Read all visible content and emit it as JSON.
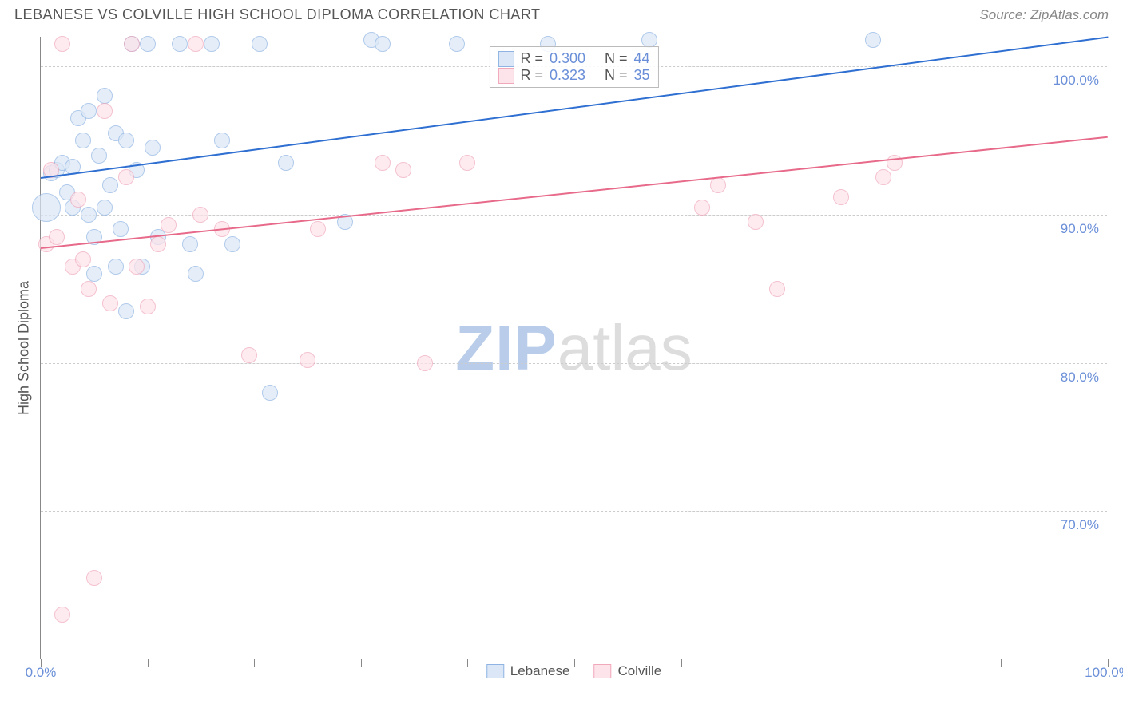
{
  "header": {
    "title": "LEBANESE VS COLVILLE HIGH SCHOOL DIPLOMA CORRELATION CHART",
    "source": "Source: ZipAtlas.com"
  },
  "chart": {
    "type": "scatter",
    "yaxis_title": "High School Diploma",
    "xlim": [
      0,
      100
    ],
    "ylim": [
      60,
      102
    ],
    "xticks": [
      0,
      10,
      20,
      30,
      40,
      50,
      60,
      70,
      80,
      90,
      100
    ],
    "xtick_labels": {
      "0": "0.0%",
      "100": "100.0%"
    },
    "yticks": [
      70,
      80,
      90,
      100
    ],
    "ytick_labels": {
      "70": "70.0%",
      "80": "80.0%",
      "90": "90.0%",
      "100": "100.0%"
    },
    "grid_color": "#cccccc",
    "background": "#ffffff",
    "axis_color": "#888888",
    "tick_label_color": "#6a8fd8",
    "marker_radius": 10,
    "marker_stroke_width": 1.5,
    "watermark": {
      "left": "ZIP",
      "right": "atlas",
      "left_color": "#b9cdea",
      "right_color": "#dddddd"
    },
    "series": [
      {
        "name": "Lebanese",
        "fill": "#dbe7f6",
        "stroke": "#8fb4e3",
        "fill_opacity": 0.7,
        "trend": {
          "x1": 0,
          "y1": 92.5,
          "x2": 100,
          "y2": 102,
          "color": "#2e6fd1",
          "width": 2
        },
        "stats": {
          "R": "0.300",
          "N": "44"
        },
        "points": [
          [
            0.5,
            90.5,
            18
          ],
          [
            1,
            92.8,
            10
          ],
          [
            1.5,
            93,
            10
          ],
          [
            2,
            93.5,
            10
          ],
          [
            2.5,
            91.5,
            10
          ],
          [
            3,
            93.2,
            10
          ],
          [
            3,
            90.5,
            10
          ],
          [
            3.5,
            96.5,
            10
          ],
          [
            4,
            95,
            10
          ],
          [
            4.5,
            97,
            10
          ],
          [
            4.5,
            90,
            10
          ],
          [
            5,
            86,
            10
          ],
          [
            5,
            88.5,
            10
          ],
          [
            5.5,
            94,
            10
          ],
          [
            6,
            90.5,
            10
          ],
          [
            6,
            98,
            10
          ],
          [
            6.5,
            92,
            10
          ],
          [
            7,
            86.5,
            10
          ],
          [
            7,
            95.5,
            10
          ],
          [
            7.5,
            89,
            10
          ],
          [
            8,
            95,
            10
          ],
          [
            8,
            83.5,
            10
          ],
          [
            8.5,
            101.5,
            10
          ],
          [
            9,
            93,
            10
          ],
          [
            9.5,
            86.5,
            10
          ],
          [
            10,
            101.5,
            10
          ],
          [
            10.5,
            94.5,
            10
          ],
          [
            11,
            88.5,
            10
          ],
          [
            13,
            101.5,
            10
          ],
          [
            14,
            88,
            10
          ],
          [
            14.5,
            86,
            10
          ],
          [
            16,
            101.5,
            10
          ],
          [
            17,
            95,
            10
          ],
          [
            18,
            88,
            10
          ],
          [
            20.5,
            101.5,
            10
          ],
          [
            21.5,
            78,
            10
          ],
          [
            23,
            93.5,
            10
          ],
          [
            28.5,
            89.5,
            10
          ],
          [
            31,
            101.8,
            10
          ],
          [
            32,
            101.5,
            10
          ],
          [
            39,
            101.5,
            10
          ],
          [
            47.5,
            101.5,
            10
          ],
          [
            57,
            101.8,
            10
          ],
          [
            78,
            101.8,
            10
          ]
        ]
      },
      {
        "name": "Colville",
        "fill": "#fde3ea",
        "stroke": "#f0a8bb",
        "fill_opacity": 0.7,
        "trend": {
          "x1": 0,
          "y1": 87.8,
          "x2": 100,
          "y2": 95.3,
          "color": "#e86a8a",
          "width": 2
        },
        "stats": {
          "R": "0.323",
          "N": "35"
        },
        "points": [
          [
            0.5,
            88,
            10
          ],
          [
            1,
            93,
            10
          ],
          [
            1.5,
            88.5,
            10
          ],
          [
            2,
            101.5,
            10
          ],
          [
            2,
            63,
            10
          ],
          [
            3,
            86.5,
            10
          ],
          [
            3.5,
            91,
            10
          ],
          [
            4,
            87,
            10
          ],
          [
            4.5,
            85,
            10
          ],
          [
            5,
            65.5,
            10
          ],
          [
            6,
            97,
            10
          ],
          [
            6.5,
            84,
            10
          ],
          [
            8,
            92.5,
            10
          ],
          [
            8.5,
            101.5,
            10
          ],
          [
            9,
            86.5,
            10
          ],
          [
            10,
            83.8,
            10
          ],
          [
            11,
            88,
            10
          ],
          [
            12,
            89.3,
            10
          ],
          [
            14.5,
            101.5,
            10
          ],
          [
            15,
            90,
            10
          ],
          [
            17,
            89,
            10
          ],
          [
            19.5,
            80.5,
            10
          ],
          [
            25,
            80.2,
            10
          ],
          [
            26,
            89,
            10
          ],
          [
            32,
            93.5,
            10
          ],
          [
            34,
            93,
            10
          ],
          [
            36,
            80,
            10
          ],
          [
            40,
            93.5,
            10
          ],
          [
            62,
            90.5,
            10
          ],
          [
            63.5,
            92,
            10
          ],
          [
            67,
            89.5,
            10
          ],
          [
            69,
            85,
            10
          ],
          [
            75,
            91.2,
            10
          ],
          [
            79,
            92.5,
            10
          ],
          [
            80,
            93.5,
            10
          ]
        ]
      }
    ],
    "legend": [
      {
        "label": "Lebanese",
        "fill": "#dbe7f6",
        "stroke": "#8fb4e3"
      },
      {
        "label": "Colville",
        "fill": "#fde3ea",
        "stroke": "#f0a8bb"
      }
    ]
  }
}
